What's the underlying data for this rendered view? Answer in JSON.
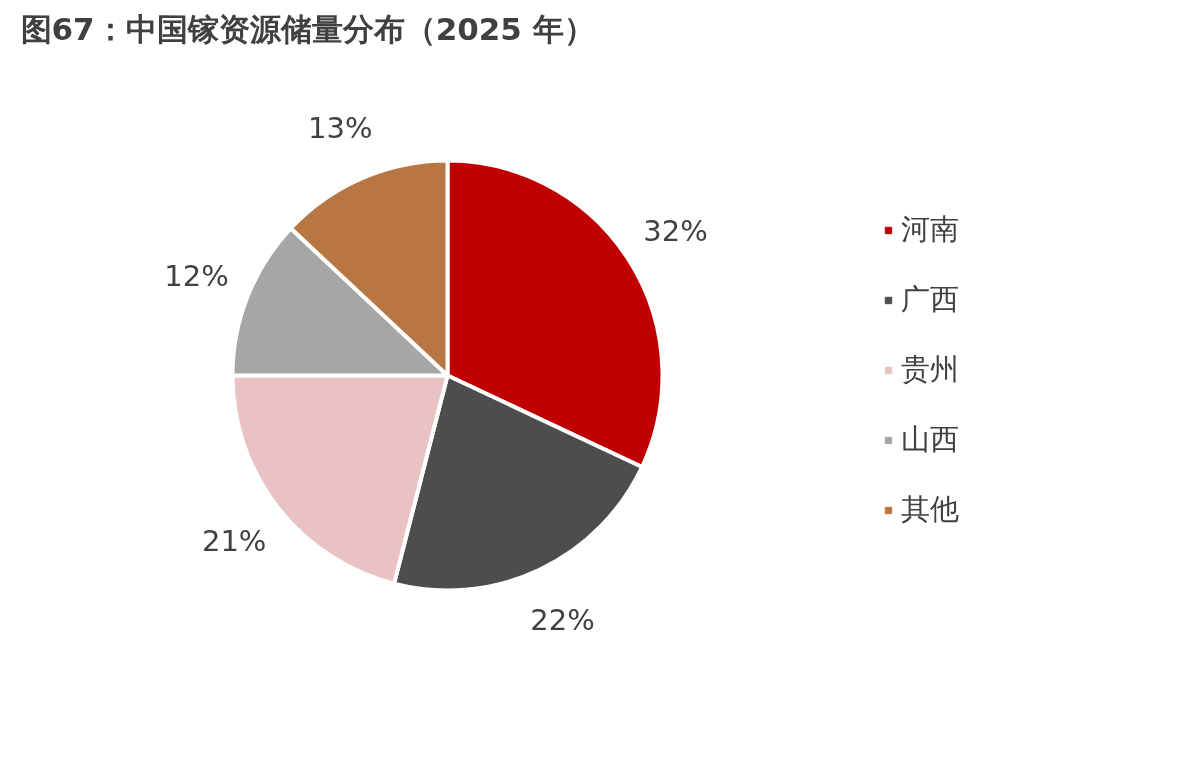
{
  "chart_data": {
    "type": "pie",
    "title": "图67：中国镓资源储量分布（2025 年）",
    "categories": [
      "河南",
      "广西",
      "贵州",
      "山西",
      "其他"
    ],
    "values": [
      32,
      22,
      21,
      12,
      13
    ],
    "colors": [
      "#c00000",
      "#4d4d4f",
      "#e9c3c3",
      "#a6a6a6",
      "#b87642"
    ],
    "value_labels": [
      "32%",
      "22%",
      "21%",
      "12%",
      "13%"
    ],
    "legend": "right"
  }
}
